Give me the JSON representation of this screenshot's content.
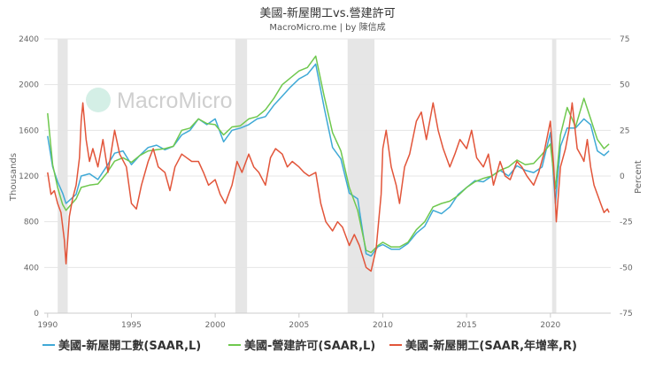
{
  "chart_data": {
    "type": "line",
    "title": "美國-新屋開工vs.營建許可",
    "subtitle": "MacroMicro.me | by 陳信成",
    "watermark": "MacroMicro",
    "ylabel_left": "Thousands",
    "ylabel_right": "Percent",
    "x_ticks": [
      "1990",
      "1995",
      "2000",
      "2005",
      "2010",
      "2015",
      "2020"
    ],
    "xlim": [
      1989.8,
      2023.6
    ],
    "ylim_left": [
      0,
      2400
    ],
    "ylim_right": [
      -75,
      75
    ],
    "left_ticks": [
      "0",
      "400",
      "800",
      "1200",
      "1600",
      "2000",
      "2400"
    ],
    "right_ticks": [
      "-75",
      "-50",
      "-25",
      "0",
      "25",
      "50",
      "75"
    ],
    "recessions": [
      [
        1990.6,
        1991.2
      ],
      [
        2001.2,
        2001.9
      ],
      [
        2007.9,
        2009.5
      ],
      [
        2020.1,
        2020.35
      ]
    ],
    "grid": true,
    "legend_position": "bottom",
    "colors": {
      "starts": "#3fa9d6",
      "permits": "#6fc84e",
      "yoy": "#e2553a",
      "recession": "#e6e6e6",
      "grid": "#e5e5e5"
    },
    "series": [
      {
        "name": "美國-新屋開工數(SAAR,L)",
        "axis": "left",
        "color": "#3fa9d6",
        "points": [
          [
            1990.0,
            1550
          ],
          [
            1990.3,
            1280
          ],
          [
            1990.6,
            1150
          ],
          [
            1990.9,
            1050
          ],
          [
            1991.1,
            960
          ],
          [
            1991.4,
            1000
          ],
          [
            1991.7,
            1040
          ],
          [
            1992.0,
            1200
          ],
          [
            1992.5,
            1220
          ],
          [
            1993.0,
            1170
          ],
          [
            1993.5,
            1280
          ],
          [
            1994.0,
            1400
          ],
          [
            1994.5,
            1420
          ],
          [
            1995.0,
            1300
          ],
          [
            1995.5,
            1380
          ],
          [
            1996.0,
            1450
          ],
          [
            1996.5,
            1470
          ],
          [
            1997.0,
            1430
          ],
          [
            1997.5,
            1460
          ],
          [
            1998.0,
            1560
          ],
          [
            1998.5,
            1600
          ],
          [
            1999.0,
            1700
          ],
          [
            1999.5,
            1650
          ],
          [
            2000.0,
            1700
          ],
          [
            2000.5,
            1500
          ],
          [
            2001.0,
            1600
          ],
          [
            2001.5,
            1620
          ],
          [
            2002.0,
            1650
          ],
          [
            2002.5,
            1700
          ],
          [
            2003.0,
            1720
          ],
          [
            2003.5,
            1820
          ],
          [
            2004.0,
            1900
          ],
          [
            2004.5,
            1980
          ],
          [
            2005.0,
            2050
          ],
          [
            2005.5,
            2090
          ],
          [
            2006.0,
            2180
          ],
          [
            2006.5,
            1800
          ],
          [
            2007.0,
            1450
          ],
          [
            2007.5,
            1350
          ],
          [
            2008.0,
            1050
          ],
          [
            2008.5,
            1000
          ],
          [
            2009.0,
            520
          ],
          [
            2009.3,
            500
          ],
          [
            2009.7,
            580
          ],
          [
            2010.0,
            600
          ],
          [
            2010.5,
            560
          ],
          [
            2011.0,
            560
          ],
          [
            2011.5,
            610
          ],
          [
            2012.0,
            700
          ],
          [
            2012.5,
            760
          ],
          [
            2013.0,
            900
          ],
          [
            2013.5,
            870
          ],
          [
            2014.0,
            930
          ],
          [
            2014.5,
            1040
          ],
          [
            2015.0,
            1100
          ],
          [
            2015.5,
            1160
          ],
          [
            2016.0,
            1150
          ],
          [
            2016.5,
            1200
          ],
          [
            2017.0,
            1250
          ],
          [
            2017.5,
            1200
          ],
          [
            2018.0,
            1290
          ],
          [
            2018.5,
            1250
          ],
          [
            2019.0,
            1230
          ],
          [
            2019.5,
            1280
          ],
          [
            2020.0,
            1580
          ],
          [
            2020.3,
            960
          ],
          [
            2020.6,
            1460
          ],
          [
            2021.0,
            1620
          ],
          [
            2021.5,
            1620
          ],
          [
            2022.0,
            1700
          ],
          [
            2022.4,
            1650
          ],
          [
            2022.8,
            1420
          ],
          [
            2023.2,
            1380
          ],
          [
            2023.5,
            1420
          ]
        ]
      },
      {
        "name": "美國-營建許可(SAAR,L)",
        "axis": "left",
        "color": "#6fc84e",
        "points": [
          [
            1990.0,
            1750
          ],
          [
            1990.3,
            1300
          ],
          [
            1990.6,
            1100
          ],
          [
            1990.9,
            950
          ],
          [
            1991.1,
            900
          ],
          [
            1991.4,
            950
          ],
          [
            1991.7,
            1000
          ],
          [
            1992.0,
            1100
          ],
          [
            1992.5,
            1120
          ],
          [
            1993.0,
            1130
          ],
          [
            1993.5,
            1220
          ],
          [
            1994.0,
            1330
          ],
          [
            1994.5,
            1360
          ],
          [
            1995.0,
            1320
          ],
          [
            1995.5,
            1380
          ],
          [
            1996.0,
            1420
          ],
          [
            1996.5,
            1430
          ],
          [
            1997.0,
            1440
          ],
          [
            1997.5,
            1460
          ],
          [
            1998.0,
            1600
          ],
          [
            1998.5,
            1620
          ],
          [
            1999.0,
            1700
          ],
          [
            1999.5,
            1660
          ],
          [
            2000.0,
            1650
          ],
          [
            2000.5,
            1560
          ],
          [
            2001.0,
            1630
          ],
          [
            2001.5,
            1640
          ],
          [
            2002.0,
            1700
          ],
          [
            2002.5,
            1720
          ],
          [
            2003.0,
            1780
          ],
          [
            2003.5,
            1880
          ],
          [
            2004.0,
            2000
          ],
          [
            2004.5,
            2060
          ],
          [
            2005.0,
            2120
          ],
          [
            2005.5,
            2150
          ],
          [
            2006.0,
            2250
          ],
          [
            2006.5,
            1900
          ],
          [
            2007.0,
            1580
          ],
          [
            2007.5,
            1420
          ],
          [
            2008.0,
            1100
          ],
          [
            2008.5,
            900
          ],
          [
            2009.0,
            550
          ],
          [
            2009.3,
            530
          ],
          [
            2009.7,
            590
          ],
          [
            2010.0,
            620
          ],
          [
            2010.5,
            580
          ],
          [
            2011.0,
            580
          ],
          [
            2011.5,
            620
          ],
          [
            2012.0,
            730
          ],
          [
            2012.5,
            800
          ],
          [
            2013.0,
            930
          ],
          [
            2013.5,
            960
          ],
          [
            2014.0,
            980
          ],
          [
            2014.5,
            1030
          ],
          [
            2015.0,
            1100
          ],
          [
            2015.5,
            1150
          ],
          [
            2016.0,
            1180
          ],
          [
            2016.5,
            1200
          ],
          [
            2017.0,
            1250
          ],
          [
            2017.5,
            1280
          ],
          [
            2018.0,
            1340
          ],
          [
            2018.5,
            1300
          ],
          [
            2019.0,
            1310
          ],
          [
            2019.5,
            1390
          ],
          [
            2020.0,
            1480
          ],
          [
            2020.3,
            1090
          ],
          [
            2020.6,
            1560
          ],
          [
            2021.0,
            1800
          ],
          [
            2021.5,
            1630
          ],
          [
            2022.0,
            1880
          ],
          [
            2022.4,
            1700
          ],
          [
            2022.8,
            1520
          ],
          [
            2023.2,
            1440
          ],
          [
            2023.5,
            1480
          ]
        ]
      },
      {
        "name": "美國-新屋開工(SAAR,年增率,R)",
        "axis": "right",
        "color": "#e2553a",
        "points": [
          [
            1990.0,
            2
          ],
          [
            1990.2,
            -10
          ],
          [
            1990.4,
            -8
          ],
          [
            1990.6,
            -15
          ],
          [
            1990.8,
            -20
          ],
          [
            1991.0,
            -35
          ],
          [
            1991.1,
            -48
          ],
          [
            1991.3,
            -22
          ],
          [
            1991.5,
            -12
          ],
          [
            1991.7,
            -5
          ],
          [
            1991.9,
            10
          ],
          [
            1992.0,
            30
          ],
          [
            1992.1,
            40
          ],
          [
            1992.3,
            20
          ],
          [
            1992.5,
            8
          ],
          [
            1992.7,
            15
          ],
          [
            1993.0,
            5
          ],
          [
            1993.3,
            20
          ],
          [
            1993.6,
            2
          ],
          [
            1994.0,
            25
          ],
          [
            1994.3,
            12
          ],
          [
            1994.7,
            5
          ],
          [
            1995.0,
            -15
          ],
          [
            1995.3,
            -18
          ],
          [
            1995.6,
            -5
          ],
          [
            1996.0,
            8
          ],
          [
            1996.3,
            15
          ],
          [
            1996.6,
            5
          ],
          [
            1997.0,
            2
          ],
          [
            1997.3,
            -8
          ],
          [
            1997.6,
            5
          ],
          [
            1998.0,
            12
          ],
          [
            1998.3,
            10
          ],
          [
            1998.6,
            8
          ],
          [
            1999.0,
            8
          ],
          [
            1999.3,
            2
          ],
          [
            1999.6,
            -5
          ],
          [
            2000.0,
            -2
          ],
          [
            2000.3,
            -10
          ],
          [
            2000.6,
            -15
          ],
          [
            2001.0,
            -5
          ],
          [
            2001.3,
            8
          ],
          [
            2001.6,
            2
          ],
          [
            2002.0,
            12
          ],
          [
            2002.3,
            5
          ],
          [
            2002.6,
            2
          ],
          [
            2003.0,
            -5
          ],
          [
            2003.3,
            10
          ],
          [
            2003.6,
            15
          ],
          [
            2004.0,
            12
          ],
          [
            2004.3,
            5
          ],
          [
            2004.6,
            8
          ],
          [
            2005.0,
            5
          ],
          [
            2005.3,
            2
          ],
          [
            2005.6,
            0
          ],
          [
            2006.0,
            2
          ],
          [
            2006.3,
            -15
          ],
          [
            2006.6,
            -25
          ],
          [
            2007.0,
            -30
          ],
          [
            2007.3,
            -25
          ],
          [
            2007.6,
            -28
          ],
          [
            2008.0,
            -38
          ],
          [
            2008.3,
            -32
          ],
          [
            2008.6,
            -38
          ],
          [
            2009.0,
            -50
          ],
          [
            2009.3,
            -52
          ],
          [
            2009.6,
            -40
          ],
          [
            2009.9,
            -10
          ],
          [
            2010.0,
            15
          ],
          [
            2010.2,
            25
          ],
          [
            2010.5,
            5
          ],
          [
            2010.8,
            -5
          ],
          [
            2011.0,
            -15
          ],
          [
            2011.3,
            5
          ],
          [
            2011.6,
            12
          ],
          [
            2012.0,
            30
          ],
          [
            2012.3,
            35
          ],
          [
            2012.6,
            20
          ],
          [
            2013.0,
            40
          ],
          [
            2013.3,
            25
          ],
          [
            2013.6,
            15
          ],
          [
            2014.0,
            5
          ],
          [
            2014.3,
            12
          ],
          [
            2014.6,
            20
          ],
          [
            2015.0,
            15
          ],
          [
            2015.3,
            25
          ],
          [
            2015.6,
            10
          ],
          [
            2016.0,
            5
          ],
          [
            2016.3,
            12
          ],
          [
            2016.6,
            -5
          ],
          [
            2017.0,
            8
          ],
          [
            2017.3,
            0
          ],
          [
            2017.6,
            -2
          ],
          [
            2018.0,
            8
          ],
          [
            2018.3,
            5
          ],
          [
            2018.6,
            0
          ],
          [
            2019.0,
            -5
          ],
          [
            2019.3,
            2
          ],
          [
            2019.6,
            12
          ],
          [
            2020.0,
            30
          ],
          [
            2020.2,
            5
          ],
          [
            2020.35,
            -25
          ],
          [
            2020.6,
            5
          ],
          [
            2020.9,
            15
          ],
          [
            2021.1,
            25
          ],
          [
            2021.3,
            40
          ],
          [
            2021.6,
            15
          ],
          [
            2021.9,
            10
          ],
          [
            2022.0,
            8
          ],
          [
            2022.2,
            20
          ],
          [
            2022.4,
            5
          ],
          [
            2022.6,
            -5
          ],
          [
            2022.8,
            -10
          ],
          [
            2023.0,
            -15
          ],
          [
            2023.2,
            -20
          ],
          [
            2023.4,
            -18
          ],
          [
            2023.5,
            -20
          ]
        ]
      }
    ]
  }
}
